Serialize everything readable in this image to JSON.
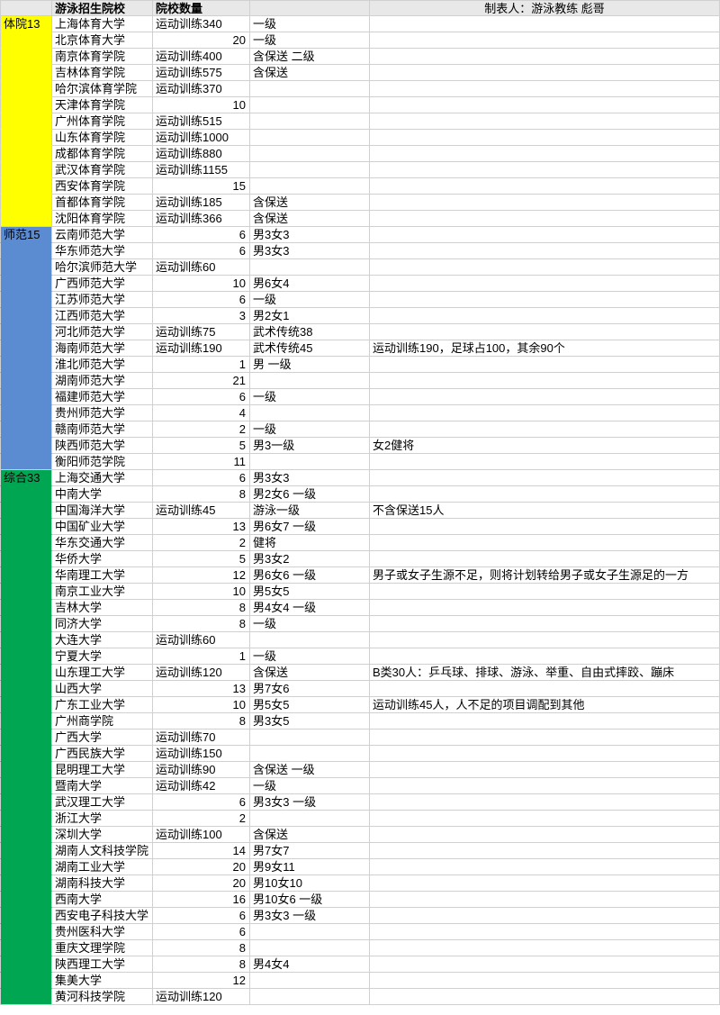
{
  "colors": {
    "header_bg": "#e8e8e8",
    "cat1": "#ffff00",
    "cat2": "#5b8bd0",
    "cat3": "#00a651",
    "border": "#d0d0d0"
  },
  "header": {
    "col2": "游泳招生院校",
    "col3": "院校数量",
    "col5": "制表人：游泳教练  彪哥"
  },
  "categories": [
    {
      "label": "体院13",
      "color": "#ffff00",
      "rows": [
        {
          "school": "上海体育大学",
          "count": "运动训练340",
          "req": "一级",
          "note": ""
        },
        {
          "school": "北京体育大学",
          "count": "20",
          "count_align": "right",
          "req": "一级",
          "note": ""
        },
        {
          "school": "南京体育学院",
          "count": "运动训练400",
          "req": "含保送 二级",
          "note": ""
        },
        {
          "school": "吉林体育学院",
          "count": "运动训练575",
          "req": "含保送",
          "note": ""
        },
        {
          "school": "哈尔滨体育学院",
          "count": "运动训练370",
          "req": "",
          "note": ""
        },
        {
          "school": "天津体育学院",
          "count": "10",
          "count_align": "right",
          "req": "",
          "note": ""
        },
        {
          "school": "广州体育学院",
          "count": "运动训练515",
          "req": "",
          "note": ""
        },
        {
          "school": "山东体育学院",
          "count": "运动训练1000",
          "req": "",
          "note": ""
        },
        {
          "school": "成都体育学院",
          "count": "运动训练880",
          "req": "",
          "note": ""
        },
        {
          "school": "武汉体育学院",
          "count": "运动训练1155",
          "req": "",
          "note": ""
        },
        {
          "school": "西安体育学院",
          "count": "15",
          "count_align": "right",
          "req": "",
          "note": ""
        },
        {
          "school": "首都体育学院",
          "count": "运动训练185",
          "req": "含保送",
          "note": ""
        },
        {
          "school": "沈阳体育学院",
          "count": "运动训练366",
          "req": "含保送",
          "note": ""
        }
      ]
    },
    {
      "label": "师范15",
      "color": "#5b8bd0",
      "rows": [
        {
          "school": "云南师范大学",
          "count": "6",
          "count_align": "right",
          "req": "男3女3",
          "note": ""
        },
        {
          "school": "华东师范大学",
          "count": "6",
          "count_align": "right",
          "req": "男3女3",
          "note": ""
        },
        {
          "school": "哈尔滨师范大学",
          "count": "运动训练60",
          "req": "",
          "note": ""
        },
        {
          "school": "广西师范大学",
          "count": "10",
          "count_align": "right",
          "req": "男6女4",
          "note": ""
        },
        {
          "school": "江苏师范大学",
          "count": "6",
          "count_align": "right",
          "req": "一级",
          "note": ""
        },
        {
          "school": "江西师范大学",
          "count": "3",
          "count_align": "right",
          "req": "男2女1",
          "note": ""
        },
        {
          "school": "河北师范大学",
          "count": "运动训练75",
          "req": "武术传统38",
          "note": ""
        },
        {
          "school": "海南师范大学",
          "count": "运动训练190",
          "req": "武术传统45",
          "note": "运动训练190，足球占100，其余90个"
        },
        {
          "school": "淮北师范大学",
          "count": "1",
          "count_align": "right",
          "req": "男 一级",
          "note": ""
        },
        {
          "school": "湖南师范大学",
          "count": "21",
          "count_align": "right",
          "req": "",
          "note": ""
        },
        {
          "school": "福建师范大学",
          "count": "6",
          "count_align": "right",
          "req": "一级",
          "note": ""
        },
        {
          "school": "贵州师范大学",
          "count": "4",
          "count_align": "right",
          "req": "",
          "note": ""
        },
        {
          "school": "赣南师范大学",
          "count": "2",
          "count_align": "right",
          "req": "一级",
          "note": ""
        },
        {
          "school": "陕西师范大学",
          "count": "5",
          "count_align": "right",
          "req": "男3一级",
          "note": "女2健将"
        },
        {
          "school": "衡阳师范学院",
          "count": "11",
          "count_align": "right",
          "req": "",
          "note": ""
        }
      ]
    },
    {
      "label": "综合33",
      "color": "#00a651",
      "rows": [
        {
          "school": "上海交通大学",
          "count": "6",
          "count_align": "right",
          "req": "男3女3",
          "note": ""
        },
        {
          "school": "中南大学",
          "count": "8",
          "count_align": "right",
          "req": "男2女6 一级",
          "note": ""
        },
        {
          "school": "中国海洋大学",
          "count": "运动训练45",
          "req": "游泳一级",
          "note": "不含保送15人"
        },
        {
          "school": "中国矿业大学",
          "count": "13",
          "count_align": "right",
          "req": "男6女7 一级",
          "note": ""
        },
        {
          "school": "华东交通大学",
          "count": "2",
          "count_align": "right",
          "req": "健将",
          "note": ""
        },
        {
          "school": "华侨大学",
          "count": "5",
          "count_align": "right",
          "req": "男3女2",
          "note": ""
        },
        {
          "school": "华南理工大学",
          "count": "12",
          "count_align": "right",
          "req": "男6女6 一级",
          "note": "男子或女子生源不足，则将计划转给男子或女子生源足的一方"
        },
        {
          "school": "南京工业大学",
          "count": "10",
          "count_align": "right",
          "req": "男5女5",
          "note": ""
        },
        {
          "school": "吉林大学",
          "count": "8",
          "count_align": "right",
          "req": "男4女4 一级",
          "note": ""
        },
        {
          "school": "同济大学",
          "count": "8",
          "count_align": "right",
          "req": "一级",
          "note": ""
        },
        {
          "school": "大连大学",
          "count": "运动训练60",
          "req": "",
          "note": ""
        },
        {
          "school": "宁夏大学",
          "count": "1",
          "count_align": "right",
          "req": "一级",
          "note": ""
        },
        {
          "school": "山东理工大学",
          "count": "运动训练120",
          "req": "含保送",
          "note": "B类30人：乒乓球、排球、游泳、举重、自由式摔跤、蹦床"
        },
        {
          "school": "山西大学",
          "count": "13",
          "count_align": "right",
          "req": "男7女6",
          "note": ""
        },
        {
          "school": "广东工业大学",
          "count": "10",
          "count_align": "right",
          "req": "男5女5",
          "note": "运动训练45人，人不足的项目调配到其他"
        },
        {
          "school": "广州商学院",
          "count": "8",
          "count_align": "right",
          "req": "男3女5",
          "note": ""
        },
        {
          "school": "广西大学",
          "count": "运动训练70",
          "req": "",
          "note": ""
        },
        {
          "school": "广西民族大学",
          "count": "运动训练150",
          "req": "",
          "note": ""
        },
        {
          "school": "昆明理工大学",
          "count": "运动训练90",
          "req": "含保送 一级",
          "note": ""
        },
        {
          "school": "暨南大学",
          "count": "运动训练42",
          "req": "一级",
          "note": ""
        },
        {
          "school": "武汉理工大学",
          "count": "6",
          "count_align": "right",
          "req": "男3女3  一级",
          "note": ""
        },
        {
          "school": "浙江大学",
          "count": "2",
          "count_align": "right",
          "req": "",
          "note": ""
        },
        {
          "school": "深圳大学",
          "count": "运动训练100",
          "req": "含保送",
          "note": ""
        },
        {
          "school": "湖南人文科技学院",
          "count": "14",
          "count_align": "right",
          "req": "男7女7",
          "note": ""
        },
        {
          "school": "湖南工业大学",
          "count": "20",
          "count_align": "right",
          "req": "男9女11",
          "note": ""
        },
        {
          "school": "湖南科技大学",
          "count": "20",
          "count_align": "right",
          "req": "男10女10",
          "note": ""
        },
        {
          "school": "西南大学",
          "count": "16",
          "count_align": "right",
          "req": "男10女6 一级",
          "note": ""
        },
        {
          "school": "西安电子科技大学",
          "count": "6",
          "count_align": "right",
          "req": "男3女3 一级",
          "note": ""
        },
        {
          "school": "贵州医科大学",
          "count": "6",
          "count_align": "right",
          "req": "",
          "note": ""
        },
        {
          "school": "重庆文理学院",
          "count": "8",
          "count_align": "right",
          "req": "",
          "note": ""
        },
        {
          "school": "陕西理工大学",
          "count": "8",
          "count_align": "right",
          "req": "男4女4",
          "note": ""
        },
        {
          "school": "集美大学",
          "count": "12",
          "count_align": "right",
          "req": "",
          "note": ""
        },
        {
          "school": "黄河科技学院",
          "count": "运动训练120",
          "req": "",
          "note": ""
        }
      ]
    }
  ]
}
